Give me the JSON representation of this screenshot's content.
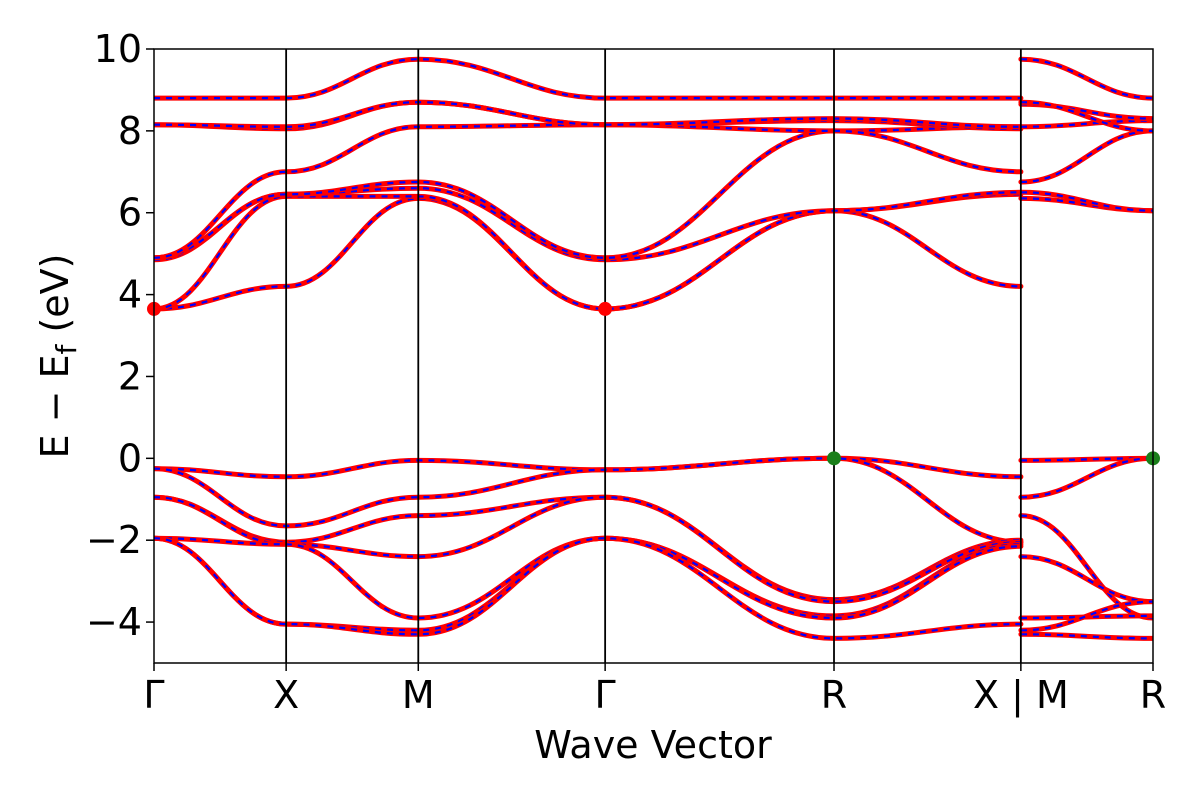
{
  "chart_data": {
    "type": "line",
    "xlabel": "Wave Vector",
    "ylabel": "E − E",
    "ylabel_sub": "f",
    "ylabel_unit": " (eV)",
    "ylim": [
      -5,
      10
    ],
    "yticks": [
      {
        "value": -4,
        "label": "−4"
      },
      {
        "value": -2,
        "label": "−2"
      },
      {
        "value": 0,
        "label": "0"
      },
      {
        "value": 2,
        "label": "2"
      },
      {
        "value": 4,
        "label": "4"
      },
      {
        "value": 6,
        "label": "6"
      },
      {
        "value": 8,
        "label": "8"
      },
      {
        "value": 10,
        "label": "10"
      }
    ],
    "kpath_ticks": [
      {
        "pos": 0.0,
        "label": "Γ"
      },
      {
        "pos": 1.0,
        "label": "X"
      },
      {
        "pos": 2.0,
        "label": "M"
      },
      {
        "pos": 3.414,
        "label": "Γ"
      },
      {
        "pos": 5.146,
        "label": "R"
      },
      {
        "pos": 6.56,
        "label": "X | M"
      },
      {
        "pos": 7.56,
        "label": "R"
      }
    ],
    "xlim": [
      0.0,
      7.56
    ],
    "series_colors": {
      "line_a": "#ff0000",
      "line_b": "#0000ff"
    },
    "band_extrema": [
      {
        "pos": 0.0,
        "energy": 3.65,
        "color": "#ff0000"
      },
      {
        "pos": 3.414,
        "energy": 3.65,
        "color": "#ff0000"
      },
      {
        "pos": 5.146,
        "energy": 0.0,
        "color": "#1a7f1a"
      },
      {
        "pos": 7.56,
        "energy": 0.0,
        "color": "#1a7f1a"
      }
    ],
    "bands": [
      [
        [
          0,
          -0.25
        ],
        [
          1,
          -0.45
        ],
        [
          2,
          -0.05
        ],
        [
          3.414,
          -0.28
        ],
        [
          5.146,
          0.0
        ],
        [
          6.56,
          -0.45
        ]
      ],
      [
        [
          0,
          -0.25
        ],
        [
          1,
          -1.65
        ],
        [
          2,
          -0.95
        ],
        [
          3.414,
          -0.28
        ],
        [
          5.146,
          0.0
        ],
        [
          6.56,
          -2.05
        ]
      ],
      [
        [
          0,
          -0.95
        ],
        [
          1,
          -2.05
        ],
        [
          2,
          -1.4
        ],
        [
          3.414,
          -0.95
        ],
        [
          5.146,
          -3.45
        ],
        [
          6.56,
          -2.0
        ]
      ],
      [
        [
          0,
          -0.95
        ],
        [
          1,
          -2.1
        ],
        [
          2,
          -2.4
        ],
        [
          3.414,
          -0.95
        ],
        [
          5.146,
          -3.5
        ],
        [
          6.56,
          -2.05
        ]
      ],
      [
        [
          0,
          -1.95
        ],
        [
          1,
          -2.1
        ],
        [
          2,
          -3.9
        ],
        [
          3.414,
          -1.95
        ],
        [
          5.146,
          -3.85
        ],
        [
          6.56,
          -2.1
        ]
      ],
      [
        [
          0,
          -1.95
        ],
        [
          1,
          -4.05
        ],
        [
          2,
          -4.2
        ],
        [
          3.414,
          -1.95
        ],
        [
          5.146,
          -3.9
        ],
        [
          6.56,
          -2.15
        ]
      ],
      [
        [
          0,
          -1.95
        ],
        [
          1,
          -4.05
        ],
        [
          2,
          -4.3
        ],
        [
          3.414,
          -1.95
        ],
        [
          5.146,
          -4.4
        ],
        [
          6.56,
          -4.05
        ]
      ],
      [
        [
          0,
          3.65
        ],
        [
          1,
          4.2
        ],
        [
          2,
          6.35
        ],
        [
          3.414,
          3.65
        ],
        [
          5.146,
          6.05
        ],
        [
          6.56,
          4.2
        ]
      ],
      [
        [
          0,
          3.65
        ],
        [
          1,
          6.4
        ],
        [
          2,
          6.4
        ],
        [
          3.414,
          3.65
        ],
        [
          5.146,
          6.05
        ],
        [
          6.56,
          6.45
        ]
      ],
      [
        [
          0,
          4.85
        ],
        [
          1,
          6.45
        ],
        [
          2,
          6.6
        ],
        [
          3.414,
          4.85
        ],
        [
          5.146,
          6.05
        ],
        [
          6.56,
          6.5
        ]
      ],
      [
        [
          0,
          4.9
        ],
        [
          1,
          6.45
        ],
        [
          2,
          6.75
        ],
        [
          3.414,
          4.9
        ],
        [
          5.146,
          8.0
        ],
        [
          6.56,
          8.1
        ]
      ],
      [
        [
          0,
          4.9
        ],
        [
          1,
          7.0
        ],
        [
          2,
          8.1
        ],
        [
          3.414,
          8.15
        ],
        [
          5.146,
          8.0
        ],
        [
          6.56,
          7.0
        ]
      ],
      [
        [
          0,
          8.15
        ],
        [
          1,
          8.05
        ],
        [
          2,
          8.7
        ],
        [
          3.414,
          8.15
        ],
        [
          5.146,
          8.25
        ],
        [
          6.56,
          8.05
        ]
      ],
      [
        [
          0,
          8.15
        ],
        [
          1,
          8.1
        ],
        [
          2,
          8.7
        ],
        [
          3.414,
          8.15
        ],
        [
          5.146,
          8.3
        ],
        [
          6.56,
          8.1
        ]
      ],
      [
        [
          0,
          8.8
        ],
        [
          1,
          8.8
        ],
        [
          2,
          9.75
        ],
        [
          3.414,
          8.8
        ],
        [
          5.146,
          8.8
        ],
        [
          6.56,
          8.8
        ]
      ]
    ],
    "bands_right": [
      [
        [
          6.56,
          -0.05
        ],
        [
          7.56,
          0.0
        ]
      ],
      [
        [
          6.56,
          -0.95
        ],
        [
          7.56,
          0.0
        ]
      ],
      [
        [
          6.56,
          -1.4
        ],
        [
          7.56,
          -3.9
        ]
      ],
      [
        [
          6.56,
          -2.4
        ],
        [
          7.56,
          -3.5
        ]
      ],
      [
        [
          6.56,
          -3.9
        ],
        [
          7.56,
          -3.85
        ]
      ],
      [
        [
          6.56,
          -4.2
        ],
        [
          7.56,
          -3.5
        ]
      ],
      [
        [
          6.56,
          -4.3
        ],
        [
          7.56,
          -4.4
        ]
      ],
      [
        [
          6.56,
          6.35
        ],
        [
          7.56,
          6.05
        ]
      ],
      [
        [
          6.56,
          6.5
        ],
        [
          7.56,
          6.05
        ]
      ],
      [
        [
          6.56,
          6.75
        ],
        [
          7.56,
          8.0
        ]
      ],
      [
        [
          6.56,
          8.1
        ],
        [
          7.56,
          8.25
        ]
      ],
      [
        [
          6.56,
          8.65
        ],
        [
          7.56,
          8.3
        ]
      ],
      [
        [
          6.56,
          8.7
        ],
        [
          7.56,
          8.0
        ]
      ],
      [
        [
          6.56,
          9.75
        ],
        [
          7.56,
          8.8
        ]
      ]
    ]
  }
}
